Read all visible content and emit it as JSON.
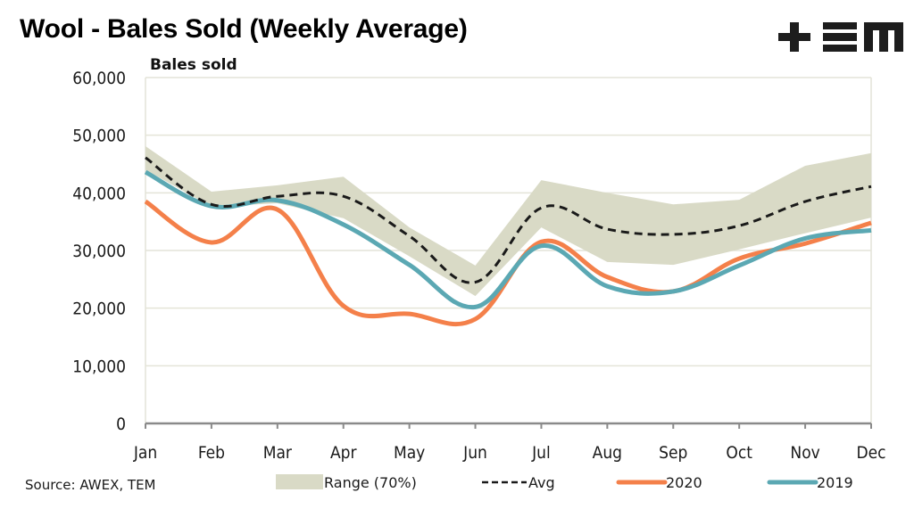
{
  "header": {
    "title": "Wool - Bales Sold (Weekly Average)",
    "logo": "TEM",
    "logo_icon": "tem-logo-icon"
  },
  "footer": {
    "source": "Source: AWEX, TEM"
  },
  "colors": {
    "range": "#d9dac6",
    "avg": "#1a1a1a",
    "y2020": "#f4804a",
    "y2019": "#5ba8b3",
    "grid": "#e4e4d8",
    "axis": "#8a8a8a"
  },
  "chart_data": {
    "type": "line",
    "title": "Wool - Bales Sold (Weekly Average)",
    "xlabel": "",
    "ylabel": "Bales sold",
    "ylim": [
      0,
      60000
    ],
    "yticks": [
      0,
      10000,
      20000,
      30000,
      40000,
      50000,
      60000
    ],
    "ytick_labels": [
      "0",
      "10,000",
      "20,000",
      "30,000",
      "40,000",
      "50,000",
      "60,000"
    ],
    "grid": true,
    "legend_position": "bottom",
    "categories": [
      "Jan",
      "Feb",
      "Mar",
      "Apr",
      "May",
      "Jun",
      "Jul",
      "Aug",
      "Sep",
      "Oct",
      "Nov",
      "Dec"
    ],
    "range": {
      "name": "Range (70%)",
      "upper": [
        48100,
        40200,
        41300,
        42800,
        34000,
        27400,
        42200,
        40000,
        38000,
        38800,
        44700,
        46900
      ],
      "lower": [
        44000,
        37600,
        38200,
        35600,
        29000,
        22100,
        34000,
        28000,
        27500,
        30200,
        33000,
        35700
      ]
    },
    "series": [
      {
        "name": "Avg",
        "style": "dashed",
        "values": [
          46100,
          38000,
          39400,
          39400,
          32500,
          24500,
          37400,
          33700,
          32800,
          34300,
          38500,
          41100
        ]
      },
      {
        "name": "2020",
        "style": "solid",
        "values": [
          38500,
          31400,
          37100,
          20400,
          19000,
          18100,
          31500,
          25400,
          22900,
          28600,
          31200,
          34800
        ]
      },
      {
        "name": "2019",
        "style": "solid",
        "values": [
          43600,
          37700,
          38700,
          34500,
          27500,
          20200,
          30800,
          23800,
          22900,
          27400,
          32100,
          33500
        ]
      }
    ],
    "legend": [
      "Range (70%)",
      "Avg",
      "2020",
      "2019"
    ]
  }
}
